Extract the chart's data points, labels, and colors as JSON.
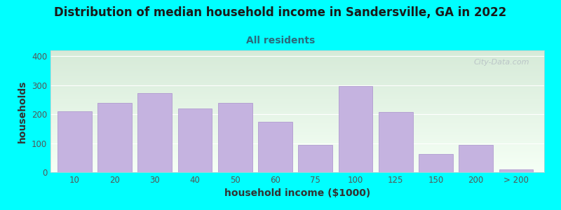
{
  "title": "Distribution of median household income in Sandersville, GA in 2022",
  "subtitle": "All residents",
  "xlabel": "household income ($1000)",
  "ylabel": "households",
  "background_color": "#00FFFF",
  "bar_color": "#c5b3e0",
  "bar_edge_color": "#a990cc",
  "watermark": "City-Data.com",
  "tick_labels": [
    "10",
    "20",
    "30",
    "40",
    "50",
    "60",
    "75",
    "100",
    "125",
    "150",
    "200",
    "> 200"
  ],
  "tick_positions": [
    1,
    2,
    3,
    4,
    5,
    6,
    7,
    8,
    9,
    10,
    11,
    12
  ],
  "bar_centers": [
    1,
    2,
    3,
    4,
    5,
    6,
    7,
    8,
    9,
    10,
    11,
    12
  ],
  "heights": [
    210,
    240,
    272,
    220,
    238,
    175,
    93,
    298,
    207,
    62,
    93,
    10
  ],
  "ylim": [
    0,
    420
  ],
  "yticks": [
    0,
    100,
    200,
    300,
    400
  ],
  "title_fontsize": 12,
  "subtitle_fontsize": 10,
  "axis_label_fontsize": 10,
  "tick_fontsize": 8.5
}
